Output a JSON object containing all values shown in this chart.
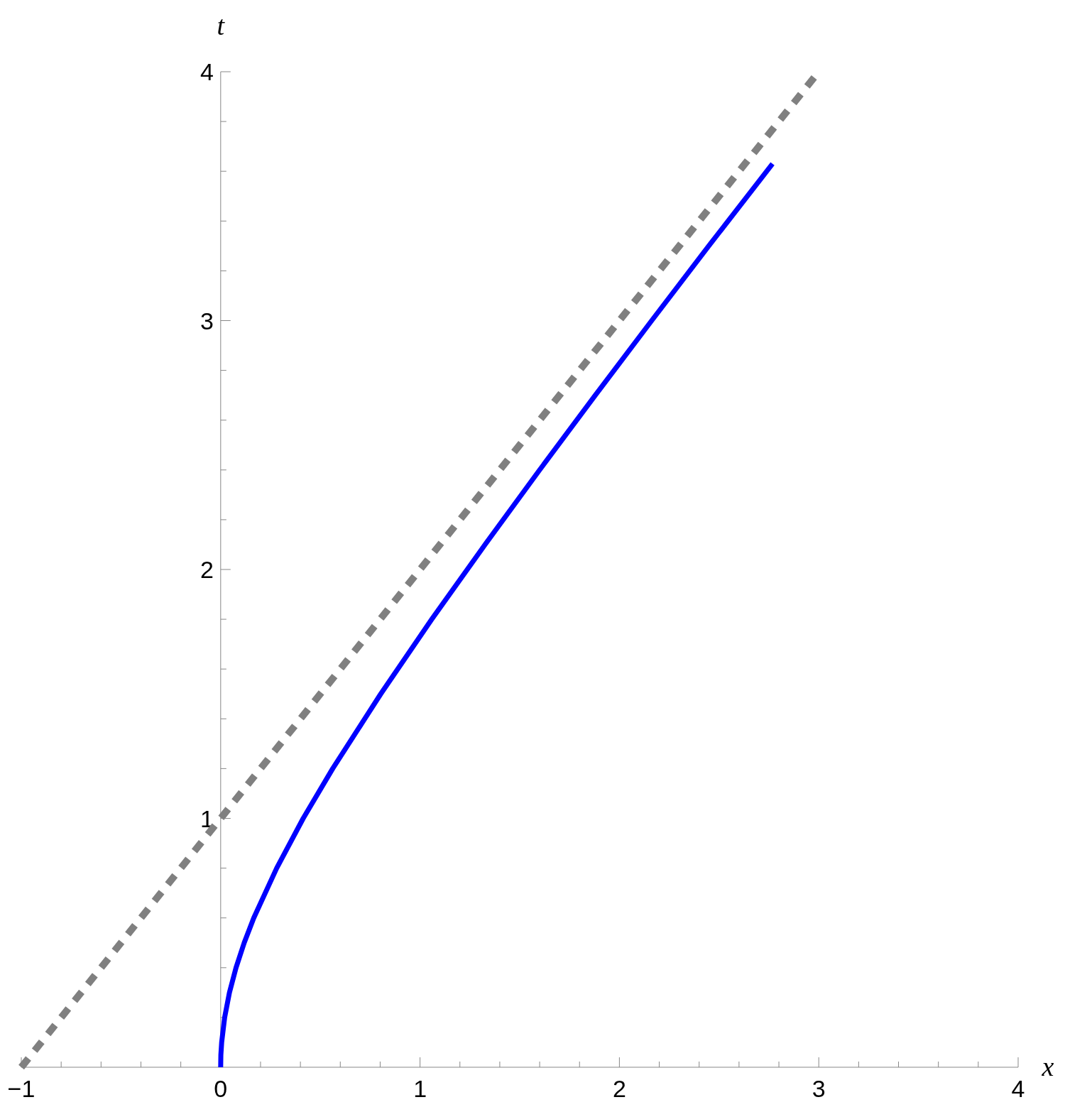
{
  "chart_data": {
    "type": "line",
    "xlabel": "x",
    "ylabel": "t",
    "xlim": [
      -1,
      4
    ],
    "ylim": [
      0,
      4
    ],
    "xticks": [
      -1,
      {
        "value": -0.8,
        "label": null
      },
      {
        "value": -0.6,
        "label": null
      },
      {
        "value": -0.4,
        "label": null
      },
      {
        "value": -0.2,
        "label": null
      },
      0,
      {
        "value": 0.2,
        "label": null
      },
      {
        "value": 0.4,
        "label": null
      },
      {
        "value": 0.6,
        "label": null
      },
      {
        "value": 0.8,
        "label": null
      },
      1,
      {
        "value": 1.2,
        "label": null
      },
      {
        "value": 1.4,
        "label": null
      },
      {
        "value": 1.6,
        "label": null
      },
      {
        "value": 1.8,
        "label": null
      },
      2,
      {
        "value": 2.2,
        "label": null
      },
      {
        "value": 2.4,
        "label": null
      },
      {
        "value": 2.6,
        "label": null
      },
      {
        "value": 2.8,
        "label": null
      },
      3,
      {
        "value": 3.2,
        "label": null
      },
      {
        "value": 3.4,
        "label": null
      },
      {
        "value": 3.6,
        "label": null
      },
      {
        "value": 3.8,
        "label": null
      },
      4
    ],
    "yticks": [
      {
        "value": 0.2,
        "label": null
      },
      {
        "value": 0.4,
        "label": null
      },
      {
        "value": 0.6,
        "label": null
      },
      {
        "value": 0.8,
        "label": null
      },
      1,
      {
        "value": 1.2,
        "label": null
      },
      {
        "value": 1.4,
        "label": null
      },
      {
        "value": 1.6,
        "label": null
      },
      {
        "value": 1.8,
        "label": null
      },
      2,
      {
        "value": 2.2,
        "label": null
      },
      {
        "value": 2.4,
        "label": null
      },
      {
        "value": 2.6,
        "label": null
      },
      {
        "value": 2.8,
        "label": null
      },
      3,
      {
        "value": 3.2,
        "label": null
      },
      {
        "value": 3.4,
        "label": null
      },
      {
        "value": 3.6,
        "label": null
      },
      {
        "value": 3.8,
        "label": null
      },
      4
    ],
    "grid": false,
    "series": [
      {
        "color": "#0000ff",
        "line_style": "solid",
        "x": [
          0,
          0.001,
          0.005,
          0.02,
          0.044,
          0.077,
          0.118,
          0.166,
          0.281,
          0.414,
          0.562,
          0.803,
          1.059,
          1.326,
          1.6,
          1.879,
          2.162,
          2.448,
          2.768
        ],
        "values": [
          0,
          0.05,
          0.1,
          0.2,
          0.3,
          0.4,
          0.5,
          0.6,
          0.8,
          1,
          1.2,
          1.5,
          1.8,
          2.1,
          2.4,
          2.7,
          3,
          3.3,
          3.63
        ]
      },
      {
        "color": "#808080",
        "line_style": "dashed",
        "x": [
          -1,
          3
        ],
        "values": [
          0,
          4
        ]
      }
    ]
  }
}
